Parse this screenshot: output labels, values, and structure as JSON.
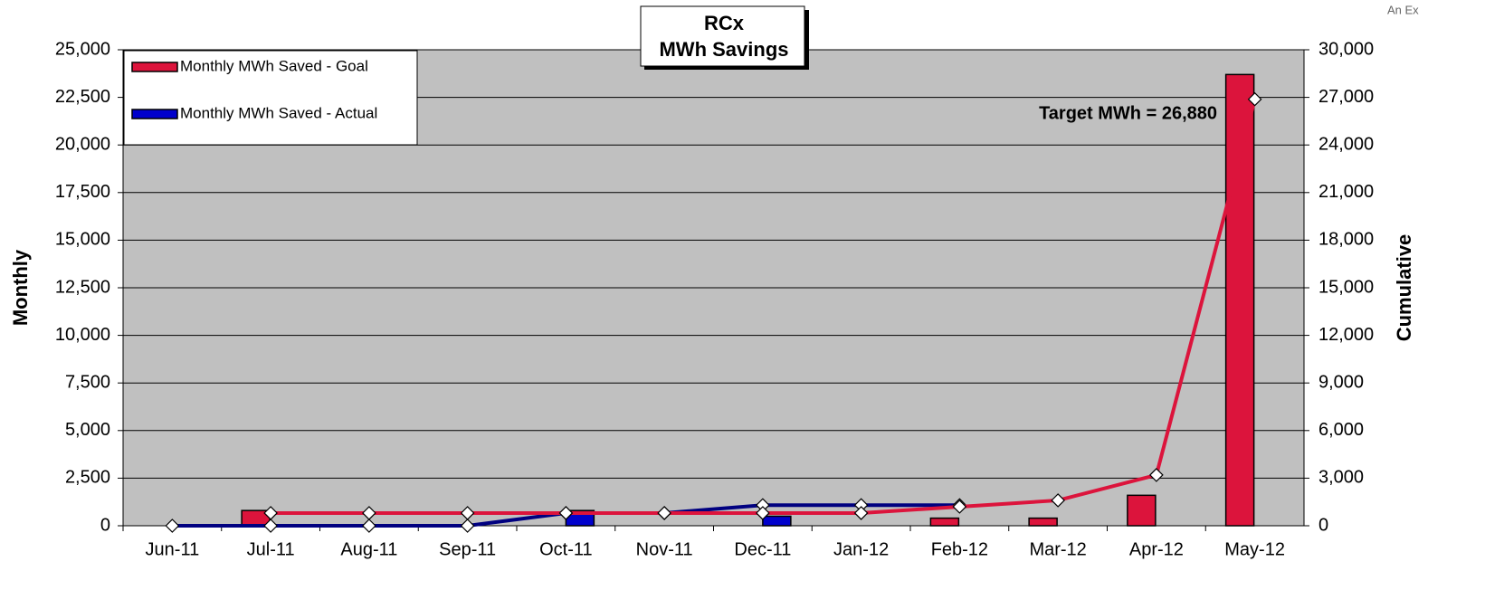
{
  "chart_data": {
    "type": "bar",
    "title": [
      "RCx",
      "MWh Savings"
    ],
    "corner_text": "An Ex",
    "annotation": "Target MWh = 26,880",
    "ylabel": "Monthly",
    "y2label": "Cumulative",
    "categories": [
      "Jun-11",
      "Jul-11",
      "Aug-11",
      "Sep-11",
      "Oct-11",
      "Nov-11",
      "Dec-11",
      "Jan-12",
      "Feb-12",
      "Mar-12",
      "Apr-12",
      "May-12"
    ],
    "series": [
      {
        "name": "Monthly MWh Saved - Goal",
        "color": "#dc143c",
        "type": "bar",
        "values": [
          0,
          800,
          0,
          0,
          0,
          0,
          0,
          0,
          400,
          400,
          1600,
          23700
        ]
      },
      {
        "name": "Monthly MWh Saved - Actual",
        "color": "#0000cc",
        "type": "bar",
        "values": [
          0,
          0,
          0,
          0,
          800,
          0,
          500,
          0,
          0,
          null,
          null,
          null
        ]
      },
      {
        "color": "#000080",
        "type": "line",
        "axis": "y2",
        "values": [
          0,
          0,
          0,
          0,
          800,
          800,
          1300,
          1300,
          1300,
          null,
          null,
          null
        ]
      },
      {
        "color": "#dc143c",
        "type": "line",
        "axis": "y2",
        "values": [
          null,
          800,
          800,
          800,
          800,
          800,
          800,
          800,
          1200,
          1600,
          3200,
          26880
        ]
      }
    ],
    "ylim": [
      0,
      25000
    ],
    "yticks": [
      0,
      {
        "value": 2500,
        "label": "2,500"
      },
      {
        "value": 5000,
        "label": "5,000"
      },
      {
        "value": 7500,
        "label": "7,500"
      },
      {
        "value": 10000,
        "label": "10,000"
      },
      {
        "value": 12500,
        "label": "12,500"
      },
      {
        "value": 15000,
        "label": "15,000"
      },
      {
        "value": 17500,
        "label": "17,500"
      },
      {
        "value": 20000,
        "label": "20,000"
      },
      {
        "value": 22500,
        "label": "22,500"
      },
      {
        "value": 25000,
        "label": "25,000"
      }
    ],
    "y2lim": [
      0,
      30000
    ],
    "y2ticks": [
      0,
      {
        "value": 3000,
        "label": "3,000"
      },
      {
        "value": 6000,
        "label": "6,000"
      },
      {
        "value": 9000,
        "label": "9,000"
      },
      {
        "value": 12000,
        "label": "12,000"
      },
      {
        "value": 15000,
        "label": "15,000"
      },
      {
        "value": 18000,
        "label": "18,000"
      },
      {
        "value": 21000,
        "label": "21,000"
      },
      {
        "value": 24000,
        "label": "24,000"
      },
      {
        "value": 27000,
        "label": "27,000"
      },
      {
        "value": 30000,
        "label": "30,000"
      }
    ],
    "grid": true,
    "plot_color": "#c0c0c0",
    "legend": "upper left"
  }
}
